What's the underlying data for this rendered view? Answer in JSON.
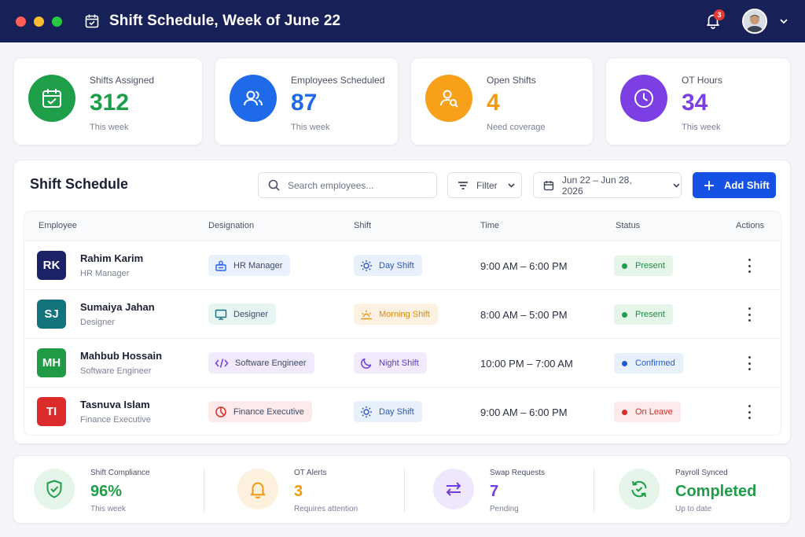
{
  "window": {
    "title": "Shift Schedule, Week of June 22",
    "notification_count": "3",
    "traffic_lights": [
      "#ff5f57",
      "#febc2e",
      "#28c840"
    ],
    "header_bg": "#172057"
  },
  "stats": [
    {
      "label": "Shifts Assigned",
      "value": "312",
      "sub": "This week",
      "icon": "calendar-check-icon",
      "color": "#1e9e48"
    },
    {
      "label": "Employees Scheduled",
      "value": "87",
      "sub": "This week",
      "icon": "users-icon",
      "color": "#1f6ae8"
    },
    {
      "label": "Open Shifts",
      "value": "4",
      "sub": "Need coverage",
      "icon": "user-search-icon",
      "color": "#f7a01a"
    },
    {
      "label": "OT Hours",
      "value": "34",
      "sub": "This week",
      "icon": "clock-icon",
      "color": "#7b3fe4"
    }
  ],
  "schedule": {
    "title": "Shift Schedule",
    "search_placeholder": "Search employees...",
    "filter_label": "Filter",
    "date_range": "Jun 22 – Jun 28, 2026",
    "add_label": "Add Shift",
    "columns": [
      "Employee",
      "Designation",
      "Shift",
      "Time",
      "Status",
      "Actions"
    ],
    "rows": [
      {
        "initials": "RK",
        "name": "Rahim Karim",
        "role": "HR Manager",
        "badge_color": "#1b2266",
        "designation": "HR Manager",
        "designation_icon": "id-badge-icon",
        "shift": "Day Shift",
        "shift_icon": "sun-icon",
        "time": "9:00 AM – 6:00 PM",
        "status": "Present",
        "status_type": "present"
      },
      {
        "initials": "SJ",
        "name": "Sumaiya Jahan",
        "role": "Designer",
        "badge_color": "#13737c",
        "designation": "Designer",
        "designation_icon": "monitor-icon",
        "shift": "Morning Shift",
        "shift_icon": "sunrise-icon",
        "time": "8:00 AM – 5:00 PM",
        "status": "Present",
        "status_type": "present"
      },
      {
        "initials": "MH",
        "name": "Mahbub Hossain",
        "role": "Software Engineer",
        "badge_color": "#1f9a45",
        "designation": "Software Engineer",
        "designation_icon": "code-icon",
        "shift": "Night Shift",
        "shift_icon": "moon-icon",
        "time": "10:00 PM – 7:00 AM",
        "status": "Confirmed",
        "status_type": "confirmed"
      },
      {
        "initials": "TI",
        "name": "Tasnuva Islam",
        "role": "Finance Executive",
        "badge_color": "#dc2b2b",
        "designation": "Finance Executive",
        "designation_icon": "pie-chart-icon",
        "shift": "Day Shift",
        "shift_icon": "sun-icon",
        "time": "9:00 AM – 6:00 PM",
        "status": "On Leave",
        "status_type": "leave"
      }
    ]
  },
  "kpis": [
    {
      "label": "Shift Compliance",
      "value": "96%",
      "sub": "This week",
      "icon": "shield-check-icon",
      "color": "#1e9e48",
      "bg": "#e6f5ea"
    },
    {
      "label": "OT Alerts",
      "value": "3",
      "sub": "Requires attention",
      "icon": "bell-icon",
      "color": "#f29b12",
      "bg": "#fdf1de"
    },
    {
      "label": "Swap Requests",
      "value": "7",
      "sub": "Pending",
      "icon": "swap-icon",
      "color": "#6f3de0",
      "bg": "#efe8fc"
    },
    {
      "label": "Payroll Synced",
      "value": "Completed",
      "sub": "Up to date",
      "icon": "sync-check-icon",
      "color": "#1e9e48",
      "bg": "#e6f5ea"
    }
  ]
}
